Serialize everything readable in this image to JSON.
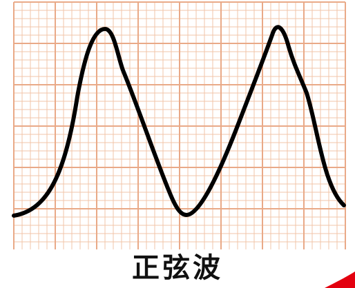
{
  "caption": "正弦波",
  "colors": {
    "grid": "#f2c4a8",
    "grid_major": "#e9a987",
    "wave": "#000000",
    "background": "#ffffff",
    "accent": "#e3000f"
  },
  "grid": {
    "minor_lines": true,
    "major_every": 5
  },
  "wave": {
    "type": "asymmetric periodic waveform",
    "cycles_visible": 2
  }
}
